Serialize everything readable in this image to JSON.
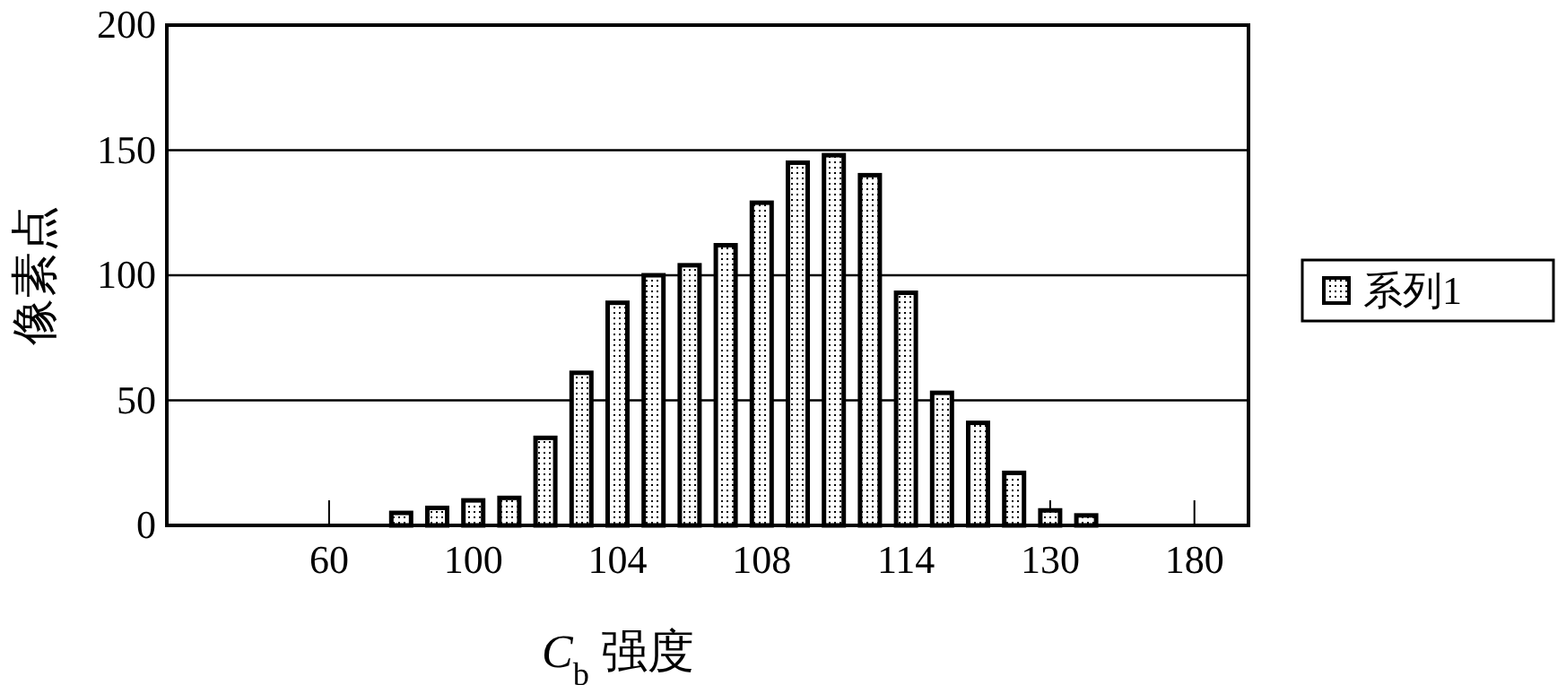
{
  "chart_data": {
    "type": "bar",
    "xlabel": "C$_{b}$ 强度",
    "ylabel": "像素点",
    "categories": [
      null,
      null,
      null,
      null,
      "60",
      null,
      null,
      null,
      "100",
      null,
      null,
      null,
      "104",
      null,
      null,
      null,
      "108",
      null,
      null,
      null,
      "114",
      null,
      null,
      null,
      "130",
      null,
      null,
      null,
      "180",
      null
    ],
    "series": [
      {
        "name": "系列1",
        "color": "#000000",
        "values": [
          null,
          null,
          null,
          null,
          null,
          null,
          5,
          7,
          10,
          11,
          35,
          61,
          89,
          100,
          104,
          112,
          129,
          145,
          148,
          140,
          93,
          53,
          41,
          21,
          6,
          4,
          null,
          null,
          null,
          null
        ]
      }
    ],
    "ylim": [
      0,
      200
    ],
    "yticks": [
      0,
      50,
      100,
      150,
      200
    ],
    "grid": "y",
    "legend": "right"
  }
}
